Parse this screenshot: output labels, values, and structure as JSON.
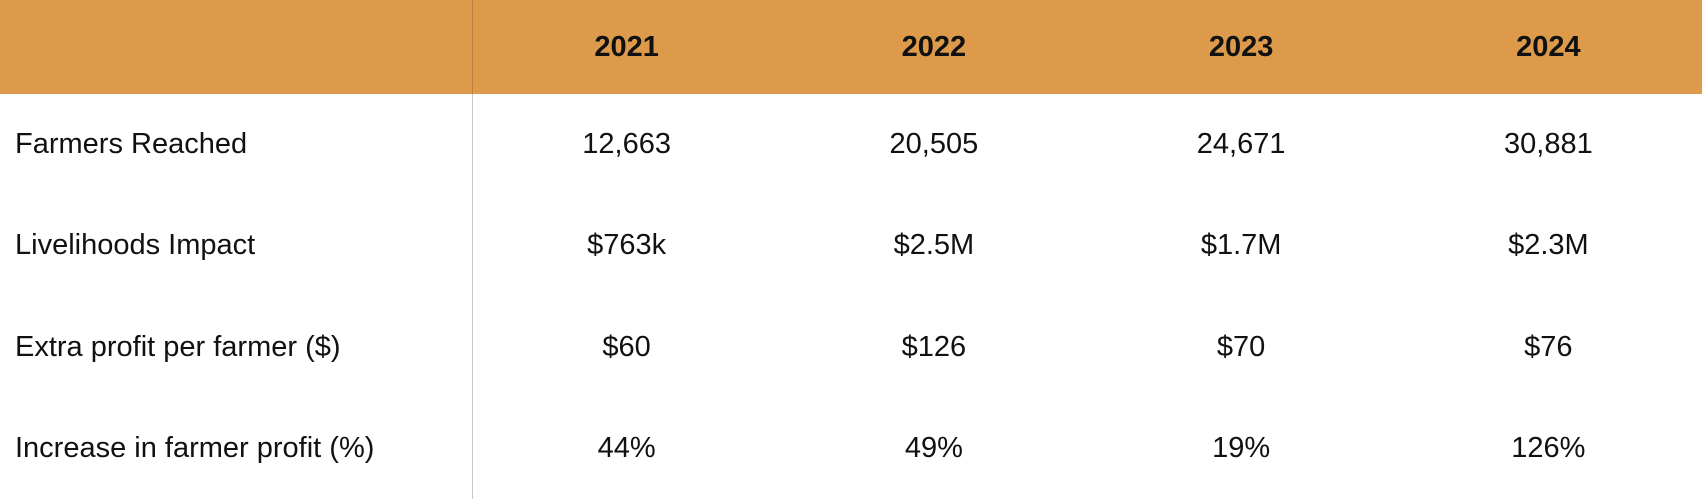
{
  "table": {
    "header": [
      "2021",
      "2022",
      "2023",
      "2024"
    ],
    "rows": [
      {
        "label": "Farmers Reached",
        "values": [
          "12,663",
          "20,505",
          "24,671",
          "30,881"
        ]
      },
      {
        "label": "Livelihoods Impact",
        "values": [
          "$763k",
          "$2.5M",
          "$1.7M",
          "$2.3M"
        ]
      },
      {
        "label": "Extra profit per farmer ($)",
        "values": [
          "$60",
          "$126",
          "$70",
          "$76"
        ]
      },
      {
        "label": "Increase in farmer profit (%)",
        "values": [
          "44%",
          "49%",
          "19%",
          "126%"
        ]
      }
    ]
  }
}
